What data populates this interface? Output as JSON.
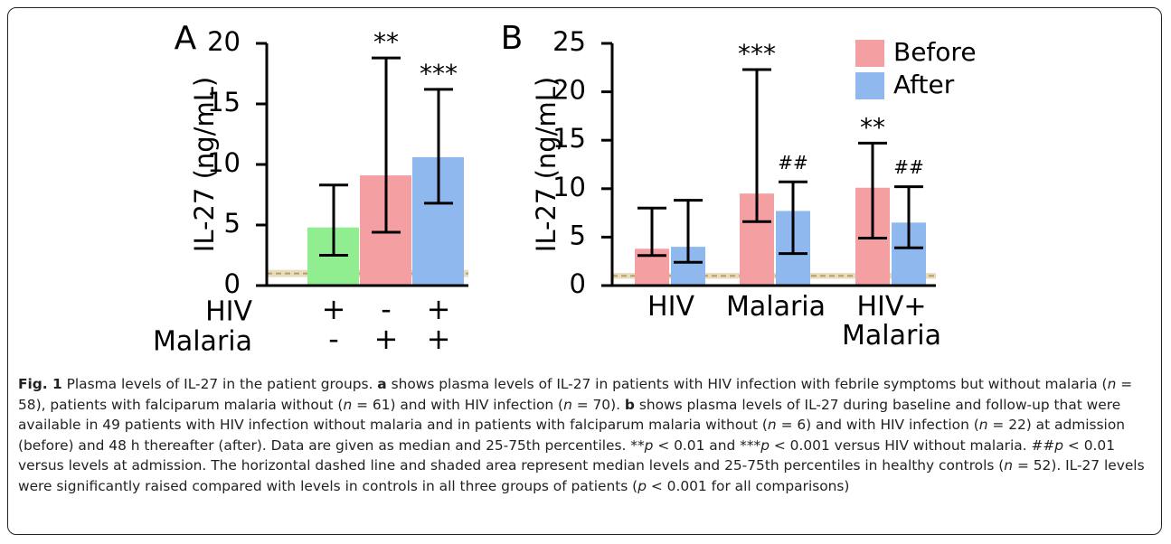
{
  "chart_data": [
    {
      "type": "bar",
      "title": "A",
      "ylabel": "IL-27 (ng/mL)",
      "ylim": [
        0,
        20
      ],
      "yticks": [
        0,
        5,
        10,
        15,
        20
      ],
      "values": [
        4.8,
        9.1,
        10.6
      ],
      "error_low": [
        2.5,
        4.4,
        6.8
      ],
      "error_high": [
        8.3,
        18.8,
        16.2
      ],
      "colors": [
        "#90ee90",
        "#f4a0a3",
        "#8fb9ee"
      ],
      "annotations": [
        null,
        "**",
        "***"
      ],
      "factors": [
        {
          "name": "HIV",
          "signs": [
            "+",
            "-",
            "+"
          ]
        },
        {
          "name": "Malaria",
          "signs": [
            "-",
            "+",
            "+"
          ]
        }
      ],
      "control": {
        "median": 1,
        "low": 0.7,
        "high": 1.3
      }
    },
    {
      "type": "grouped_bar",
      "title": "B",
      "ylabel": "IL-27 (ng/mL)",
      "ylim": [
        0,
        25
      ],
      "yticks": [
        0,
        5,
        10,
        15,
        20,
        25
      ],
      "categories": [
        "HIV",
        "Malaria",
        "HIV+\nMalaria"
      ],
      "legend": "top-right",
      "series": [
        {
          "name": "Before",
          "color": "#f4a0a3",
          "values": [
            3.8,
            9.5,
            10.1
          ],
          "error_low": [
            3.1,
            6.6,
            4.9
          ],
          "error_high": [
            8.0,
            22.3,
            14.7
          ],
          "annotations": [
            null,
            "***",
            "**"
          ]
        },
        {
          "name": "After",
          "color": "#8fb9ee",
          "values": [
            4.0,
            7.7,
            6.5
          ],
          "error_low": [
            2.4,
            3.3,
            3.9
          ],
          "error_high": [
            8.8,
            10.7,
            10.2
          ],
          "annotations": [
            null,
            "##",
            "##"
          ]
        }
      ],
      "control": {
        "median": 1,
        "low": 0.7,
        "high": 1.3
      }
    }
  ],
  "caption": [
    {
      "text": "Fig. 1",
      "style": "bold"
    },
    {
      "text": " Plasma levels of IL-27 in the patient groups. "
    },
    {
      "text": "a",
      "style": "bold"
    },
    {
      "text": " shows plasma levels of IL-27 in patients with HIV infection with febrile symptoms but without malaria ("
    },
    {
      "text": "n",
      "style": "italic"
    },
    {
      "text": " = 58), patients with falciparum malaria without ("
    },
    {
      "text": "n",
      "style": "italic"
    },
    {
      "text": " = 61) and with HIV infection ("
    },
    {
      "text": "n",
      "style": "italic"
    },
    {
      "text": " = 70). "
    },
    {
      "text": "b",
      "style": "bold"
    },
    {
      "text": " shows plasma levels of IL-27 during baseline and follow-up that were available in 49 patients with HIV infection without malaria and in patients with falciparum malaria without ("
    },
    {
      "text": "n",
      "style": "italic"
    },
    {
      "text": " = 6) and with HIV infection ("
    },
    {
      "text": "n",
      "style": "italic"
    },
    {
      "text": " = 22) at admission (before) and 48 h thereafter (after). Data are given as median and 25-75th percentiles. **"
    },
    {
      "text": "p",
      "style": "italic"
    },
    {
      "text": " < 0.01 and ***"
    },
    {
      "text": "p",
      "style": "italic"
    },
    {
      "text": " < 0.001 versus HIV without malaria. ##"
    },
    {
      "text": "p",
      "style": "italic"
    },
    {
      "text": " < 0.01 versus levels at admission. The horizontal dashed line and shaded area represent median levels and 25-75th percentiles in healthy controls ("
    },
    {
      "text": "n",
      "style": "italic"
    },
    {
      "text": " = 52). IL-27 levels were significantly raised compared with levels in controls in all three groups of patients ("
    },
    {
      "text": "p",
      "style": "italic"
    },
    {
      "text": " < 0.001 for all comparisons)"
    }
  ]
}
